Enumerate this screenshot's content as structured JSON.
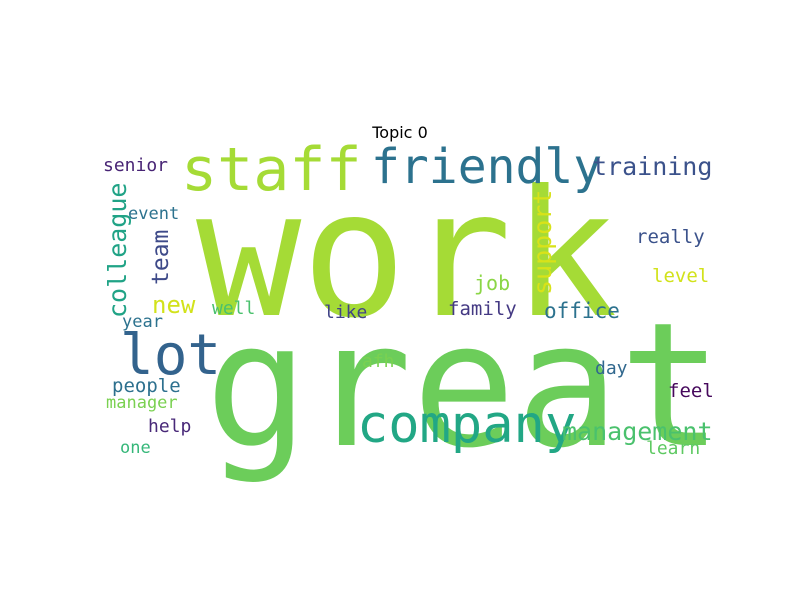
{
  "chart_data": {
    "type": "wordcloud",
    "title": "Topic 0",
    "words": [
      {
        "text": "work",
        "weight": 1.0,
        "color": "#a5db36"
      },
      {
        "text": "great",
        "weight": 0.93,
        "color": "#6ccd5a"
      },
      {
        "text": "staff",
        "weight": 0.36,
        "color": "#a5db36"
      },
      {
        "text": "company",
        "weight": 0.33,
        "color": "#22a785"
      },
      {
        "text": "friendly",
        "weight": 0.31,
        "color": "#2c728e"
      },
      {
        "text": "lot",
        "weight": 0.3,
        "color": "#33638d"
      },
      {
        "text": "management",
        "weight": 0.2,
        "color": "#4ac16d"
      },
      {
        "text": "training",
        "weight": 0.2,
        "color": "#3b528b"
      },
      {
        "text": "colleague",
        "weight": 0.18,
        "color": "#20a386"
      },
      {
        "text": "support",
        "weight": 0.17,
        "color": "#d8e219"
      },
      {
        "text": "new",
        "weight": 0.17,
        "color": "#d2e21b"
      },
      {
        "text": "team",
        "weight": 0.17,
        "color": "#3e4a89"
      },
      {
        "text": "office",
        "weight": 0.17,
        "color": "#2c728e"
      },
      {
        "text": "job",
        "weight": 0.16,
        "color": "#8bd646"
      },
      {
        "text": "family",
        "weight": 0.15,
        "color": "#443983"
      },
      {
        "text": "really",
        "weight": 0.15,
        "color": "#3b528b"
      },
      {
        "text": "level",
        "weight": 0.15,
        "color": "#d2e21b"
      },
      {
        "text": "people",
        "weight": 0.15,
        "color": "#2d708e"
      },
      {
        "text": "feel",
        "weight": 0.15,
        "color": "#46085c"
      },
      {
        "text": "senior",
        "weight": 0.15,
        "color": "#482475"
      },
      {
        "text": "well",
        "weight": 0.15,
        "color": "#4ac16d"
      },
      {
        "text": "like",
        "weight": 0.15,
        "color": "#414487"
      },
      {
        "text": "day",
        "weight": 0.14,
        "color": "#31688e"
      },
      {
        "text": "event",
        "weight": 0.14,
        "color": "#2c728e"
      },
      {
        "text": "year",
        "weight": 0.14,
        "color": "#2c728e"
      },
      {
        "text": "afh",
        "weight": 0.14,
        "color": "#7ad151"
      },
      {
        "text": "learn",
        "weight": 0.14,
        "color": "#5ec962"
      },
      {
        "text": "manager",
        "weight": 0.14,
        "color": "#7ad151"
      },
      {
        "text": "help",
        "weight": 0.14,
        "color": "#482878"
      },
      {
        "text": "one",
        "weight": 0.14,
        "color": "#35b779"
      }
    ]
  }
}
